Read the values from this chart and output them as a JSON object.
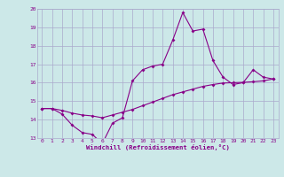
{
  "xlabel": "Windchill (Refroidissement éolien,°C)",
  "bg_color": "#cce8e8",
  "line_color": "#880088",
  "grid_color": "#aaaacc",
  "x_data": [
    0,
    1,
    2,
    3,
    4,
    5,
    6,
    7,
    8,
    9,
    10,
    11,
    12,
    13,
    14,
    15,
    16,
    17,
    18,
    19,
    20,
    21,
    22,
    23
  ],
  "y_series1": [
    14.6,
    14.6,
    14.3,
    13.7,
    13.3,
    13.2,
    12.7,
    13.8,
    14.1,
    16.1,
    16.7,
    16.9,
    17.0,
    18.3,
    19.8,
    18.8,
    18.9,
    17.2,
    16.3,
    15.9,
    16.0,
    16.7,
    16.3,
    16.2
  ],
  "y_series2": [
    14.6,
    14.6,
    14.5,
    14.35,
    14.25,
    14.2,
    14.1,
    14.25,
    14.4,
    14.55,
    14.75,
    14.95,
    15.15,
    15.35,
    15.5,
    15.65,
    15.8,
    15.9,
    15.98,
    16.0,
    16.02,
    16.05,
    16.1,
    16.2
  ],
  "ylim": [
    13.0,
    20.0
  ],
  "xlim": [
    -0.5,
    23.5
  ],
  "yticks": [
    13,
    14,
    15,
    16,
    17,
    18,
    19,
    20
  ],
  "xticks": [
    0,
    1,
    2,
    3,
    4,
    5,
    6,
    7,
    8,
    9,
    10,
    11,
    12,
    13,
    14,
    15,
    16,
    17,
    18,
    19,
    20,
    21,
    22,
    23
  ]
}
